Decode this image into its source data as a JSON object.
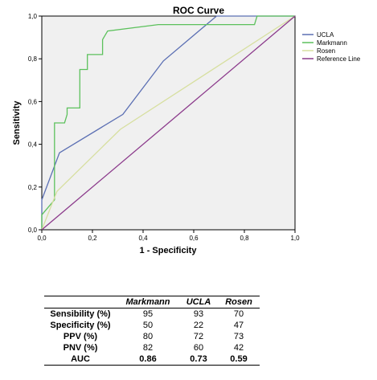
{
  "chart_data": {
    "type": "line",
    "title": "ROC Curve",
    "xlabel": "1 - Specificity",
    "ylabel": "Sensitivity",
    "xlim": [
      0,
      1
    ],
    "ylim": [
      0,
      1
    ],
    "xticks": [
      "0,0",
      "0,2",
      "0,4",
      "0,6",
      "0,8",
      "1,0"
    ],
    "yticks": [
      "0,0",
      "0,2",
      "0,4",
      "0,6",
      "0,8",
      "1,0"
    ],
    "grid": false,
    "legend_position": "right",
    "series": [
      {
        "name": "UCLA",
        "color": "#5b6fb3",
        "points": [
          [
            0,
            0
          ],
          [
            0,
            0.14
          ],
          [
            0.07,
            0.36
          ],
          [
            0.32,
            0.54
          ],
          [
            0.48,
            0.79
          ],
          [
            0.69,
            1.0
          ],
          [
            1.0,
            1.0
          ]
        ]
      },
      {
        "name": "Markmann",
        "color": "#5cc15c",
        "points": [
          [
            0,
            0
          ],
          [
            0,
            0.07
          ],
          [
            0.05,
            0.14
          ],
          [
            0.05,
            0.5
          ],
          [
            0.09,
            0.5
          ],
          [
            0.1,
            0.54
          ],
          [
            0.1,
            0.57
          ],
          [
            0.15,
            0.57
          ],
          [
            0.15,
            0.75
          ],
          [
            0.18,
            0.75
          ],
          [
            0.18,
            0.82
          ],
          [
            0.24,
            0.82
          ],
          [
            0.24,
            0.89
          ],
          [
            0.26,
            0.93
          ],
          [
            0.46,
            0.96
          ],
          [
            0.84,
            0.96
          ],
          [
            0.85,
            1.0
          ],
          [
            1.0,
            1.0
          ]
        ]
      },
      {
        "name": "Rosen",
        "color": "#d7dfa0",
        "points": [
          [
            0,
            0
          ],
          [
            0.06,
            0.18
          ],
          [
            0.31,
            0.47
          ],
          [
            1.0,
            1.0
          ]
        ]
      },
      {
        "name": "Reference Line",
        "color": "#8b3a8b",
        "points": [
          [
            0,
            0
          ],
          [
            1,
            1
          ]
        ]
      }
    ]
  },
  "table": {
    "headers": [
      "",
      "Markmann",
      "UCLA",
      "Rosen"
    ],
    "rows": [
      {
        "label": "Sensibility (%)",
        "values": [
          "95",
          "93",
          "70"
        ]
      },
      {
        "label": "Specificity (%)",
        "values": [
          "50",
          "22",
          "47"
        ]
      },
      {
        "label": "PPV (%)",
        "values": [
          "80",
          "72",
          "73"
        ]
      },
      {
        "label": "PNV (%)",
        "values": [
          "82",
          "60",
          "42"
        ]
      },
      {
        "label": "AUC",
        "values": [
          "0.86",
          "0.73",
          "0.59"
        ]
      }
    ]
  }
}
